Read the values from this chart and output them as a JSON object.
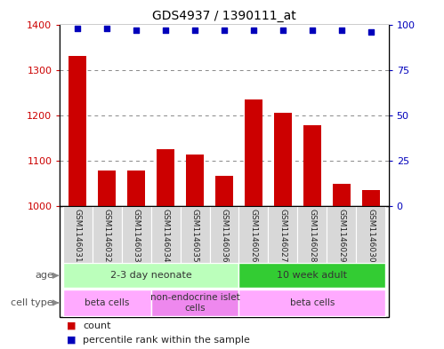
{
  "title": "GDS4937 / 1390111_at",
  "samples": [
    "GSM1146031",
    "GSM1146032",
    "GSM1146033",
    "GSM1146034",
    "GSM1146035",
    "GSM1146036",
    "GSM1146026",
    "GSM1146027",
    "GSM1146028",
    "GSM1146029",
    "GSM1146030"
  ],
  "counts": [
    1330,
    1077,
    1078,
    1125,
    1113,
    1065,
    1235,
    1205,
    1178,
    1048,
    1035
  ],
  "percentiles": [
    98,
    98,
    97,
    97,
    97,
    97,
    97,
    97,
    97,
    97,
    96
  ],
  "ylim_left": [
    1000,
    1400
  ],
  "ylim_right": [
    0,
    100
  ],
  "yticks_left": [
    1000,
    1100,
    1200,
    1300,
    1400
  ],
  "yticks_right": [
    0,
    25,
    50,
    75,
    100
  ],
  "bar_color": "#cc0000",
  "dot_color": "#0000bb",
  "age_groups": [
    {
      "label": "2-3 day neonate",
      "start": 0,
      "end": 5,
      "color": "#bbffbb"
    },
    {
      "label": "10 week adult",
      "start": 6,
      "end": 10,
      "color": "#33cc33"
    }
  ],
  "cell_type_groups": [
    {
      "label": "beta cells",
      "start": 0,
      "end": 2,
      "color": "#ffaaff"
    },
    {
      "label": "non-endocrine islet\ncells",
      "start": 3,
      "end": 5,
      "color": "#ee88ee"
    },
    {
      "label": "beta cells",
      "start": 6,
      "end": 10,
      "color": "#ffaaff"
    }
  ],
  "legend_count_color": "#cc0000",
  "legend_pct_color": "#0000bb",
  "legend_count_label": "count",
  "legend_pct_label": "percentile rank within the sample",
  "grid_color": "#888888",
  "bar_width": 0.6,
  "xlabel_bg": "#d8d8d8",
  "border_color": "#000000"
}
